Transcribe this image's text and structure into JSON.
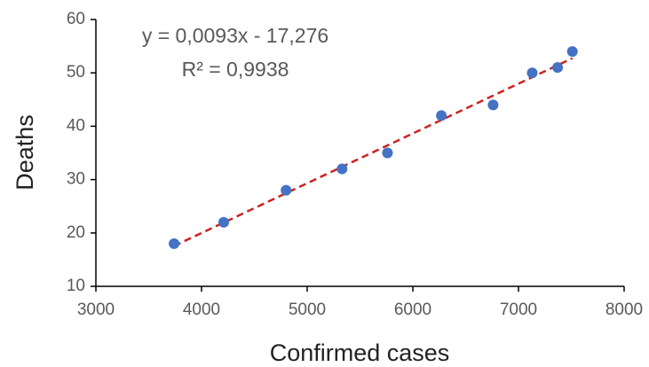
{
  "chart_data": {
    "type": "scatter",
    "xlabel": "Confirmed cases",
    "ylabel": "Deaths",
    "annotations": [
      "y = 0,0093x - 17,276",
      "R² = 0,9938"
    ],
    "x": [
      3740,
      4210,
      4800,
      5330,
      5760,
      6270,
      6760,
      7130,
      7370,
      7510
    ],
    "values": [
      18,
      22,
      28,
      32,
      35,
      42,
      44,
      50,
      51,
      54
    ],
    "color": "#4472c4",
    "trendline_color": "#cc2222",
    "xlim": [
      3000,
      8000
    ],
    "xticks": [
      3000,
      4000,
      5000,
      6000,
      7000,
      8000
    ],
    "ylim": [
      10,
      60
    ],
    "yticks": [
      10,
      20,
      30,
      40,
      50,
      60
    ],
    "grid": false
  }
}
